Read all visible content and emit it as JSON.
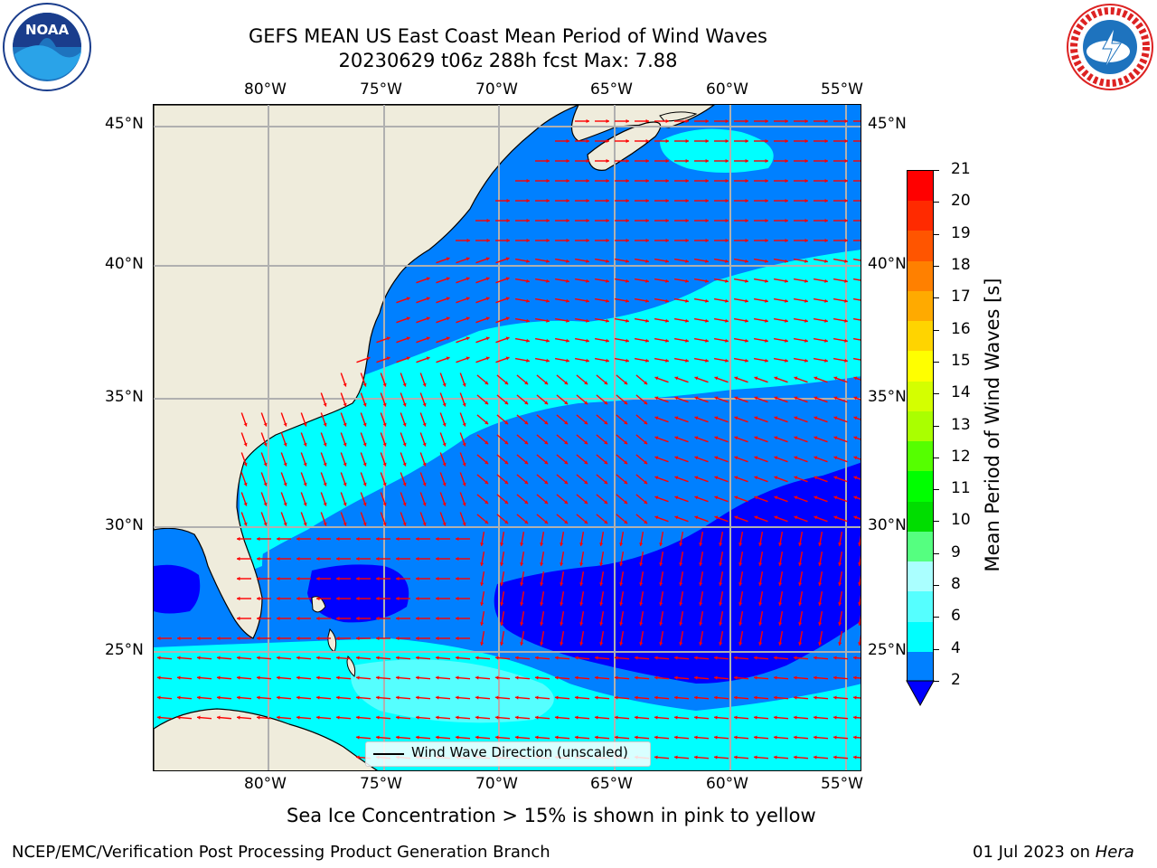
{
  "title": {
    "line1": "GEFS MEAN US East Coast Mean Period of Wind Waves",
    "line2": "20230629 t06z 288h fcst   Max: 7.88"
  },
  "logos": {
    "noaa": {
      "text": "NOAA",
      "icon": "noaa-logo-icon"
    },
    "nws": {
      "text": "NATIONAL WEATHER SERVICE",
      "icon": "nws-logo-icon"
    }
  },
  "axes": {
    "lon_labels": [
      "80°W",
      "75°W",
      "70°W",
      "65°W",
      "60°W",
      "55°W"
    ],
    "lat_labels": [
      "45°N",
      "40°N",
      "35°N",
      "30°N",
      "25°N"
    ]
  },
  "legend": {
    "label": "Wind Wave Direction (unscaled)"
  },
  "colorbar": {
    "label": "Mean Period of Wind Waves [s]",
    "ticks": [
      "21",
      "20",
      "19",
      "18",
      "17",
      "16",
      "15",
      "14",
      "13",
      "12",
      "11",
      "10",
      "9",
      "8",
      "6",
      "4",
      "2"
    ],
    "colors": [
      "#ff0000",
      "#ff2a00",
      "#ff5500",
      "#ff8000",
      "#ffaa00",
      "#ffd400",
      "#ffff00",
      "#d4ff00",
      "#aaff00",
      "#55ff00",
      "#00ff00",
      "#00dd00",
      "#55ff80",
      "#aaffff",
      "#55ffff",
      "#00ffff",
      "#0080ff"
    ],
    "under_color": "#0000ff"
  },
  "ice_note": "Sea Ice Concentration > 15% is shown in pink to yellow",
  "footer": {
    "left": "NCEP/EMC/Verification Post Processing Product Generation Branch",
    "right_date": "01 Jul 2023 on ",
    "right_host": "Hera"
  },
  "colors": {
    "land": "#efecdc",
    "ocean_base": "#0080ff",
    "ocean_short": "#0000ff",
    "ocean_long": "#00ffff",
    "arrow": "#ff0000",
    "grid": "#b0b0b0"
  }
}
